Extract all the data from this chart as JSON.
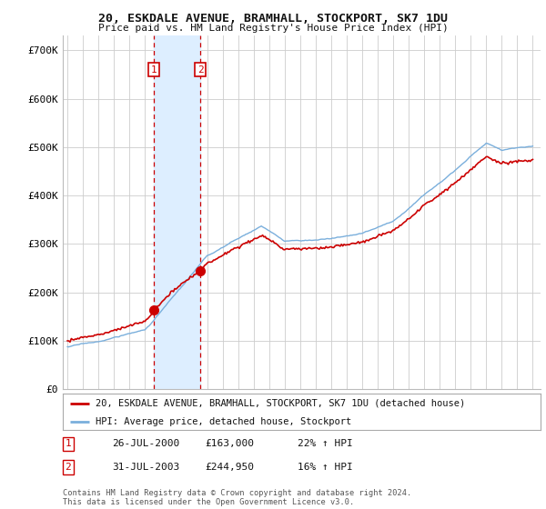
{
  "title": "20, ESKDALE AVENUE, BRAMHALL, STOCKPORT, SK7 1DU",
  "subtitle": "Price paid vs. HM Land Registry's House Price Index (HPI)",
  "ylabel_ticks": [
    "£0",
    "£100K",
    "£200K",
    "£300K",
    "£400K",
    "£500K",
    "£600K",
    "£700K"
  ],
  "ytick_values": [
    0,
    100000,
    200000,
    300000,
    400000,
    500000,
    600000,
    700000
  ],
  "ylim": [
    0,
    730000
  ],
  "xlim_start": 1994.7,
  "xlim_end": 2025.5,
  "sale1_date": 2000.57,
  "sale1_price": 163000,
  "sale1_label": "1",
  "sale2_date": 2003.57,
  "sale2_price": 244950,
  "sale2_label": "2",
  "legend_house": "20, ESKDALE AVENUE, BRAMHALL, STOCKPORT, SK7 1DU (detached house)",
  "legend_hpi": "HPI: Average price, detached house, Stockport",
  "house_color": "#cc0000",
  "hpi_color": "#7aafdc",
  "vline_color": "#cc0000",
  "vspan_color": "#ddeeff",
  "bg_color": "#ffffff",
  "grid_color": "#cccccc",
  "footer": "Contains HM Land Registry data © Crown copyright and database right 2024.\nThis data is licensed under the Open Government Licence v3.0."
}
